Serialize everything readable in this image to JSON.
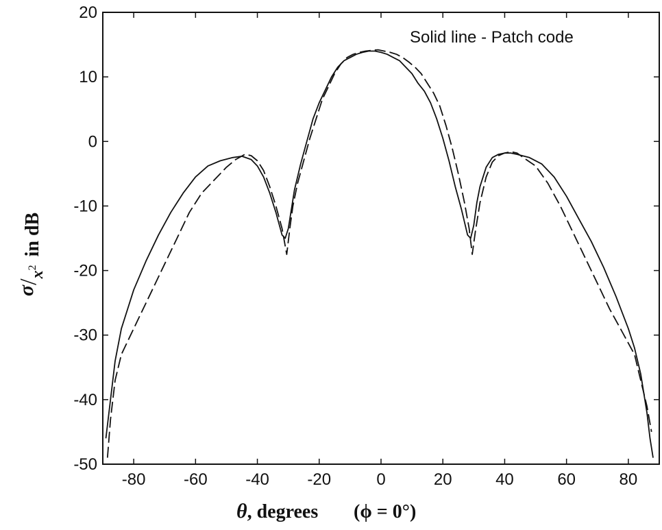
{
  "chart_data": {
    "type": "line",
    "annotation": "Solid line - Patch code",
    "xlabel": {
      "symbol": "θ",
      "text": ", degrees",
      "condition": "(ϕ = 0°)"
    },
    "ylabel": {
      "numerator": "σ",
      "denominator": "x",
      "exponent": "2",
      "suffix": "in dB"
    },
    "xlim": [
      -90,
      90
    ],
    "ylim": [
      -50,
      20
    ],
    "xticks": [
      -80,
      -60,
      -40,
      -20,
      0,
      20,
      40,
      60,
      80
    ],
    "yticks": [
      -50,
      -40,
      -30,
      -20,
      -10,
      0,
      10,
      20
    ],
    "grid": false,
    "series": [
      {
        "style": "solid",
        "x": [
          -89,
          -88,
          -87,
          -86,
          -84,
          -82,
          -80,
          -76,
          -72,
          -68,
          -64,
          -60,
          -56,
          -52,
          -48,
          -45,
          -42,
          -40,
          -38,
          -36,
          -34,
          -32,
          -31,
          -30,
          -29,
          -28,
          -26,
          -24,
          -22,
          -20,
          -18,
          -16,
          -14,
          -12,
          -10,
          -8,
          -6,
          -4,
          -2,
          0,
          2,
          4,
          6,
          8,
          10,
          12,
          14,
          16,
          18,
          20,
          22,
          24,
          26,
          28,
          29,
          30,
          31,
          32,
          34,
          36,
          38,
          40,
          42,
          44,
          48,
          52,
          56,
          60,
          64,
          68,
          72,
          76,
          80,
          82,
          84,
          86,
          87,
          88
        ],
        "y": [
          -46,
          -42,
          -38,
          -34,
          -29,
          -26,
          -23,
          -18.5,
          -14.5,
          -11,
          -8,
          -5.5,
          -3.8,
          -3,
          -2.5,
          -2.3,
          -2.8,
          -3.8,
          -5.5,
          -8,
          -11,
          -14.5,
          -15,
          -13.5,
          -10.5,
          -7.5,
          -3.5,
          0,
          3.5,
          6,
          8,
          10,
          11.5,
          12.5,
          13,
          13.5,
          13.8,
          14,
          14,
          13.8,
          13.5,
          13,
          12.5,
          11.5,
          10.5,
          9,
          7.8,
          6,
          3.5,
          0.5,
          -3,
          -7,
          -10.5,
          -14.5,
          -15,
          -13,
          -9.5,
          -7,
          -4,
          -2.5,
          -2,
          -1.8,
          -1.8,
          -2,
          -2.5,
          -3.5,
          -5.5,
          -8.5,
          -12,
          -15.5,
          -19.5,
          -24,
          -29,
          -32,
          -36,
          -42,
          -46,
          -49
        ]
      },
      {
        "style": "dashed",
        "x": [
          -88.5,
          -87.5,
          -86,
          -84,
          -82,
          -80,
          -78,
          -74,
          -70,
          -66,
          -62,
          -58,
          -54,
          -50,
          -47,
          -44,
          -42,
          -40,
          -38,
          -36,
          -34,
          -32,
          -30.5,
          -29.5,
          -28.5,
          -27,
          -25,
          -23,
          -21,
          -19,
          -17,
          -15,
          -13,
          -11,
          -9,
          -7,
          -5,
          -3,
          -1,
          1,
          3,
          5,
          7,
          9,
          11,
          13,
          15,
          17,
          19,
          21,
          23,
          25,
          27,
          28.5,
          29.5,
          30.5,
          32,
          34,
          36,
          38,
          40,
          42,
          44,
          46,
          50,
          54,
          58,
          62,
          66,
          70,
          74,
          78,
          82,
          84,
          86,
          87.5
        ],
        "y": [
          -49,
          -43,
          -37,
          -33,
          -31,
          -29,
          -27,
          -23,
          -19,
          -15,
          -11,
          -8,
          -6,
          -4,
          -2.8,
          -2,
          -2.2,
          -3,
          -4.5,
          -7,
          -10,
          -13.5,
          -17.5,
          -13.5,
          -10,
          -6.5,
          -3,
          0.5,
          3.5,
          6.5,
          8.5,
          10.5,
          12,
          13,
          13.5,
          13.8,
          14,
          14.1,
          14.2,
          14,
          13.8,
          13.5,
          13,
          12.3,
          11.5,
          10.5,
          9,
          7.5,
          5.5,
          2.5,
          -1,
          -5,
          -9.5,
          -13.5,
          -17.5,
          -14,
          -9.5,
          -5.5,
          -3.2,
          -2.2,
          -1.8,
          -1.6,
          -1.8,
          -2.5,
          -3.8,
          -6.5,
          -10,
          -14,
          -18,
          -22,
          -26,
          -29.5,
          -33,
          -37,
          -41,
          -45
        ]
      }
    ]
  }
}
